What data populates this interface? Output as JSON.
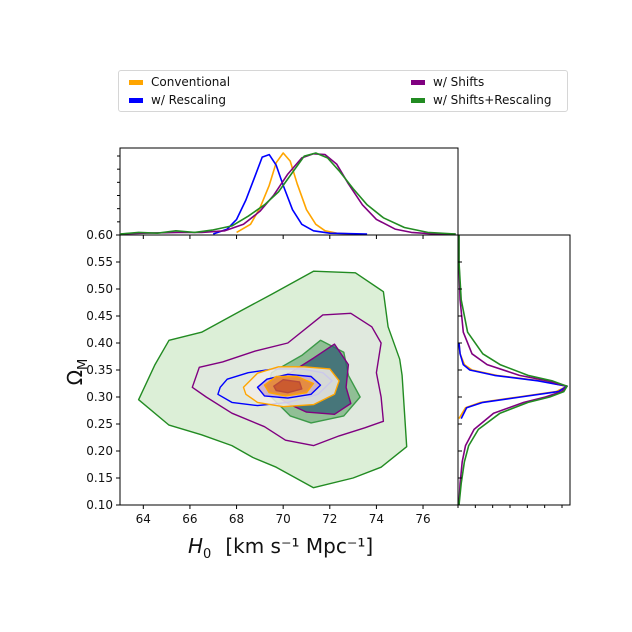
{
  "chart_data": {
    "type": "corner-contour",
    "legend": [
      {
        "label": "Conventional",
        "color": "#FFA500"
      },
      {
        "label": "w/ Rescaling",
        "color": "#0000FF"
      },
      {
        "label": "w/ Shifts",
        "color": "#800080"
      },
      {
        "label": "w/ Shifts+Rescaling",
        "color": "#228B22"
      }
    ],
    "xaxis": {
      "label_var": "H",
      "label_sub": "0",
      "label_units": "[km s⁻¹ Mpc⁻¹]",
      "lim": [
        63,
        77.5
      ],
      "ticks": [
        64,
        66,
        68,
        70,
        72,
        74,
        76
      ],
      "tick_labels": [
        "64",
        "66",
        "68",
        "70",
        "72",
        "74",
        "76"
      ]
    },
    "yaxis": {
      "label_var": "Ω",
      "label_sub": "M",
      "lim": [
        0.1,
        0.6
      ],
      "ticks": [
        0.1,
        0.15,
        0.2,
        0.25,
        0.3,
        0.35,
        0.4,
        0.45,
        0.5,
        0.55,
        0.6
      ],
      "tick_labels": [
        "0.10",
        "0.15",
        "0.20",
        "0.25",
        "0.30",
        "0.35",
        "0.40",
        "0.45",
        "0.50",
        "0.55",
        "0.60"
      ]
    },
    "marginal_H0": [
      {
        "name": "Conventional",
        "color": "#FFA500",
        "x": [
          68.0,
          68.6,
          69.0,
          69.4,
          69.7,
          70.0,
          70.3,
          70.6,
          71.0,
          71.4,
          71.8,
          72.3,
          73.0
        ],
        "y": [
          0.02,
          0.12,
          0.32,
          0.6,
          0.88,
          1.0,
          0.9,
          0.62,
          0.3,
          0.12,
          0.04,
          0.01,
          0.0
        ]
      },
      {
        "name": "w/ Rescaling",
        "color": "#0000FF",
        "x": [
          67.0,
          67.6,
          68.0,
          68.4,
          68.8,
          69.1,
          69.4,
          69.7,
          70.0,
          70.4,
          70.8,
          71.3,
          72.0,
          73.6
        ],
        "y": [
          0.0,
          0.06,
          0.18,
          0.42,
          0.72,
          0.95,
          0.98,
          0.85,
          0.6,
          0.3,
          0.12,
          0.04,
          0.01,
          0.0
        ]
      },
      {
        "name": "w/ Shifts",
        "color": "#800080",
        "x": [
          63.0,
          64.0,
          65.5,
          66.5,
          67.5,
          68.3,
          69.0,
          69.6,
          70.2,
          70.8,
          71.3,
          71.8,
          72.3,
          72.8,
          73.4,
          74.0,
          74.8,
          75.5,
          76.5,
          77.4
        ],
        "y": [
          0.0,
          0.01,
          0.02,
          0.02,
          0.04,
          0.12,
          0.28,
          0.48,
          0.74,
          0.94,
          0.99,
          0.98,
          0.86,
          0.62,
          0.36,
          0.18,
          0.06,
          0.02,
          0.0,
          0.0
        ]
      },
      {
        "name": "w/ Shifts+Rescaling",
        "color": "#228B22",
        "x": [
          63.0,
          63.8,
          64.6,
          65.4,
          66.2,
          67.0,
          67.8,
          68.5,
          69.2,
          69.8,
          70.4,
          70.9,
          71.4,
          71.9,
          72.4,
          73.0,
          73.6,
          74.3,
          75.2,
          76.2,
          77.4
        ],
        "y": [
          0.0,
          0.02,
          0.01,
          0.04,
          0.02,
          0.05,
          0.1,
          0.22,
          0.36,
          0.52,
          0.76,
          0.96,
          1.0,
          0.94,
          0.78,
          0.56,
          0.36,
          0.2,
          0.08,
          0.02,
          0.0
        ]
      }
    ],
    "marginal_Om": [
      {
        "name": "Conventional",
        "color": "#FFA500",
        "y": [
          0.26,
          0.28,
          0.29,
          0.3,
          0.31,
          0.32,
          0.33,
          0.34,
          0.35,
          0.36,
          0.38,
          0.4
        ],
        "d": [
          0.0,
          0.06,
          0.2,
          0.55,
          0.9,
          1.0,
          0.75,
          0.35,
          0.12,
          0.05,
          0.01,
          0.0
        ]
      },
      {
        "name": "w/ Rescaling",
        "color": "#0000FF",
        "y": [
          0.26,
          0.28,
          0.29,
          0.3,
          0.31,
          0.32,
          0.33,
          0.34,
          0.35,
          0.36,
          0.38,
          0.4
        ],
        "d": [
          0.02,
          0.07,
          0.22,
          0.57,
          0.92,
          1.0,
          0.73,
          0.33,
          0.1,
          0.04,
          0.01,
          0.0
        ]
      },
      {
        "name": "w/ Shifts",
        "color": "#800080",
        "y": [
          0.1,
          0.14,
          0.18,
          0.21,
          0.24,
          0.27,
          0.29,
          0.3,
          0.31,
          0.32,
          0.33,
          0.34,
          0.36,
          0.38,
          0.42,
          0.48,
          0.55,
          0.6
        ],
        "d": [
          0.0,
          0.01,
          0.03,
          0.06,
          0.14,
          0.32,
          0.6,
          0.8,
          0.95,
          1.0,
          0.82,
          0.56,
          0.26,
          0.12,
          0.04,
          0.01,
          0.0,
          0.0
        ]
      },
      {
        "name": "w/ Shifts+Rescaling",
        "color": "#228B22",
        "y": [
          0.1,
          0.14,
          0.18,
          0.21,
          0.24,
          0.27,
          0.29,
          0.3,
          0.31,
          0.32,
          0.33,
          0.34,
          0.36,
          0.38,
          0.42,
          0.48,
          0.55,
          0.6
        ],
        "d": [
          0.0,
          0.02,
          0.05,
          0.09,
          0.18,
          0.38,
          0.64,
          0.84,
          0.97,
          1.0,
          0.86,
          0.64,
          0.38,
          0.22,
          0.08,
          0.02,
          0.0,
          0.0
        ]
      }
    ],
    "contours": [
      {
        "name": "Shifts+Rescaling 95%",
        "color": "#228B22",
        "fill": "#b9e0b0",
        "fill_opacity": 0.5,
        "points": [
          [
            63.8,
            0.295
          ],
          [
            64.5,
            0.36
          ],
          [
            65.1,
            0.405
          ],
          [
            66.5,
            0.42
          ],
          [
            68.2,
            0.46
          ],
          [
            69.5,
            0.49
          ],
          [
            71.3,
            0.533
          ],
          [
            73.1,
            0.53
          ],
          [
            74.3,
            0.495
          ],
          [
            74.5,
            0.43
          ],
          [
            75.0,
            0.37
          ],
          [
            75.1,
            0.34
          ],
          [
            75.3,
            0.208
          ],
          [
            74.2,
            0.17
          ],
          [
            73.0,
            0.15
          ],
          [
            71.3,
            0.132
          ],
          [
            69.7,
            0.17
          ],
          [
            68.7,
            0.188
          ],
          [
            67.8,
            0.21
          ],
          [
            66.5,
            0.23
          ],
          [
            65.1,
            0.248
          ],
          [
            63.8,
            0.295
          ]
        ]
      },
      {
        "name": "Shifts 95%",
        "color": "#800080",
        "fill": "#e4e4e4",
        "fill_opacity": 0.55,
        "points": [
          [
            66.1,
            0.318
          ],
          [
            66.4,
            0.355
          ],
          [
            67.4,
            0.365
          ],
          [
            68.8,
            0.385
          ],
          [
            70.2,
            0.4
          ],
          [
            71.7,
            0.452
          ],
          [
            72.9,
            0.455
          ],
          [
            73.8,
            0.43
          ],
          [
            74.2,
            0.4
          ],
          [
            74.0,
            0.345
          ],
          [
            74.2,
            0.3
          ],
          [
            74.3,
            0.255
          ],
          [
            73.5,
            0.243
          ],
          [
            72.4,
            0.228
          ],
          [
            71.3,
            0.21
          ],
          [
            70.1,
            0.22
          ],
          [
            69.2,
            0.245
          ],
          [
            67.8,
            0.27
          ],
          [
            66.7,
            0.3
          ],
          [
            66.1,
            0.318
          ]
        ]
      },
      {
        "name": "Shifts+Rescaling 68%",
        "color": "#3c9a48",
        "fill": "#4f9c5a",
        "fill_opacity": 0.55,
        "points": [
          [
            69.3,
            0.308
          ],
          [
            69.5,
            0.345
          ],
          [
            70.8,
            0.377
          ],
          [
            71.6,
            0.405
          ],
          [
            72.6,
            0.383
          ],
          [
            72.8,
            0.34
          ],
          [
            73.3,
            0.3
          ],
          [
            72.6,
            0.265
          ],
          [
            71.2,
            0.252
          ],
          [
            70.3,
            0.265
          ],
          [
            69.3,
            0.308
          ]
        ]
      },
      {
        "name": "Shifts 68%",
        "color": "#800080",
        "fill": "#2f5e72",
        "fill_opacity": 0.75,
        "points": [
          [
            69.6,
            0.305
          ],
          [
            70.2,
            0.342
          ],
          [
            71.3,
            0.372
          ],
          [
            72.2,
            0.398
          ],
          [
            72.8,
            0.36
          ],
          [
            72.7,
            0.318
          ],
          [
            72.9,
            0.288
          ],
          [
            72.2,
            0.268
          ],
          [
            71.0,
            0.272
          ],
          [
            70.2,
            0.288
          ],
          [
            69.6,
            0.305
          ]
        ]
      },
      {
        "name": "Rescaling 95%",
        "color": "#0000FF",
        "fill": "none",
        "fill_opacity": 0,
        "points": [
          [
            67.3,
            0.318
          ],
          [
            67.6,
            0.333
          ],
          [
            68.5,
            0.345
          ],
          [
            69.6,
            0.352
          ],
          [
            70.8,
            0.352
          ],
          [
            71.7,
            0.345
          ],
          [
            72.1,
            0.33
          ],
          [
            71.5,
            0.305
          ],
          [
            70.2,
            0.29
          ],
          [
            68.9,
            0.284
          ],
          [
            67.8,
            0.29
          ],
          [
            67.2,
            0.305
          ],
          [
            67.3,
            0.318
          ]
        ]
      },
      {
        "name": "Conventional 95%",
        "color": "#FFA500",
        "fill": "#f0ece6",
        "fill_opacity": 0.85,
        "points": [
          [
            68.3,
            0.318
          ],
          [
            68.9,
            0.344
          ],
          [
            69.8,
            0.356
          ],
          [
            70.9,
            0.356
          ],
          [
            72.0,
            0.352
          ],
          [
            72.4,
            0.33
          ],
          [
            72.2,
            0.305
          ],
          [
            71.3,
            0.286
          ],
          [
            70.0,
            0.282
          ],
          [
            68.9,
            0.29
          ],
          [
            68.4,
            0.305
          ],
          [
            68.3,
            0.318
          ]
        ]
      },
      {
        "name": "Rescaling 68%",
        "color": "#0000FF",
        "fill": "#c9a8c3",
        "fill_opacity": 0.8,
        "points": [
          [
            68.9,
            0.318
          ],
          [
            69.3,
            0.333
          ],
          [
            70.2,
            0.342
          ],
          [
            71.2,
            0.338
          ],
          [
            71.6,
            0.322
          ],
          [
            71.2,
            0.305
          ],
          [
            70.2,
            0.298
          ],
          [
            69.2,
            0.302
          ],
          [
            68.9,
            0.318
          ]
        ]
      },
      {
        "name": "Conventional 68%",
        "color": "#FFA500",
        "fill": "#e8852c",
        "fill_opacity": 0.85,
        "points": [
          [
            69.2,
            0.322
          ],
          [
            69.7,
            0.338
          ],
          [
            70.6,
            0.338
          ],
          [
            71.3,
            0.325
          ],
          [
            71.0,
            0.308
          ],
          [
            70.1,
            0.302
          ],
          [
            69.4,
            0.308
          ],
          [
            69.2,
            0.322
          ]
        ]
      },
      {
        "name": "Core",
        "color": "#b84a3a",
        "fill": "#c8552e",
        "fill_opacity": 0.9,
        "points": [
          [
            69.6,
            0.32
          ],
          [
            70.0,
            0.332
          ],
          [
            70.7,
            0.328
          ],
          [
            70.8,
            0.315
          ],
          [
            70.2,
            0.308
          ],
          [
            69.7,
            0.312
          ],
          [
            69.6,
            0.32
          ]
        ]
      }
    ]
  }
}
